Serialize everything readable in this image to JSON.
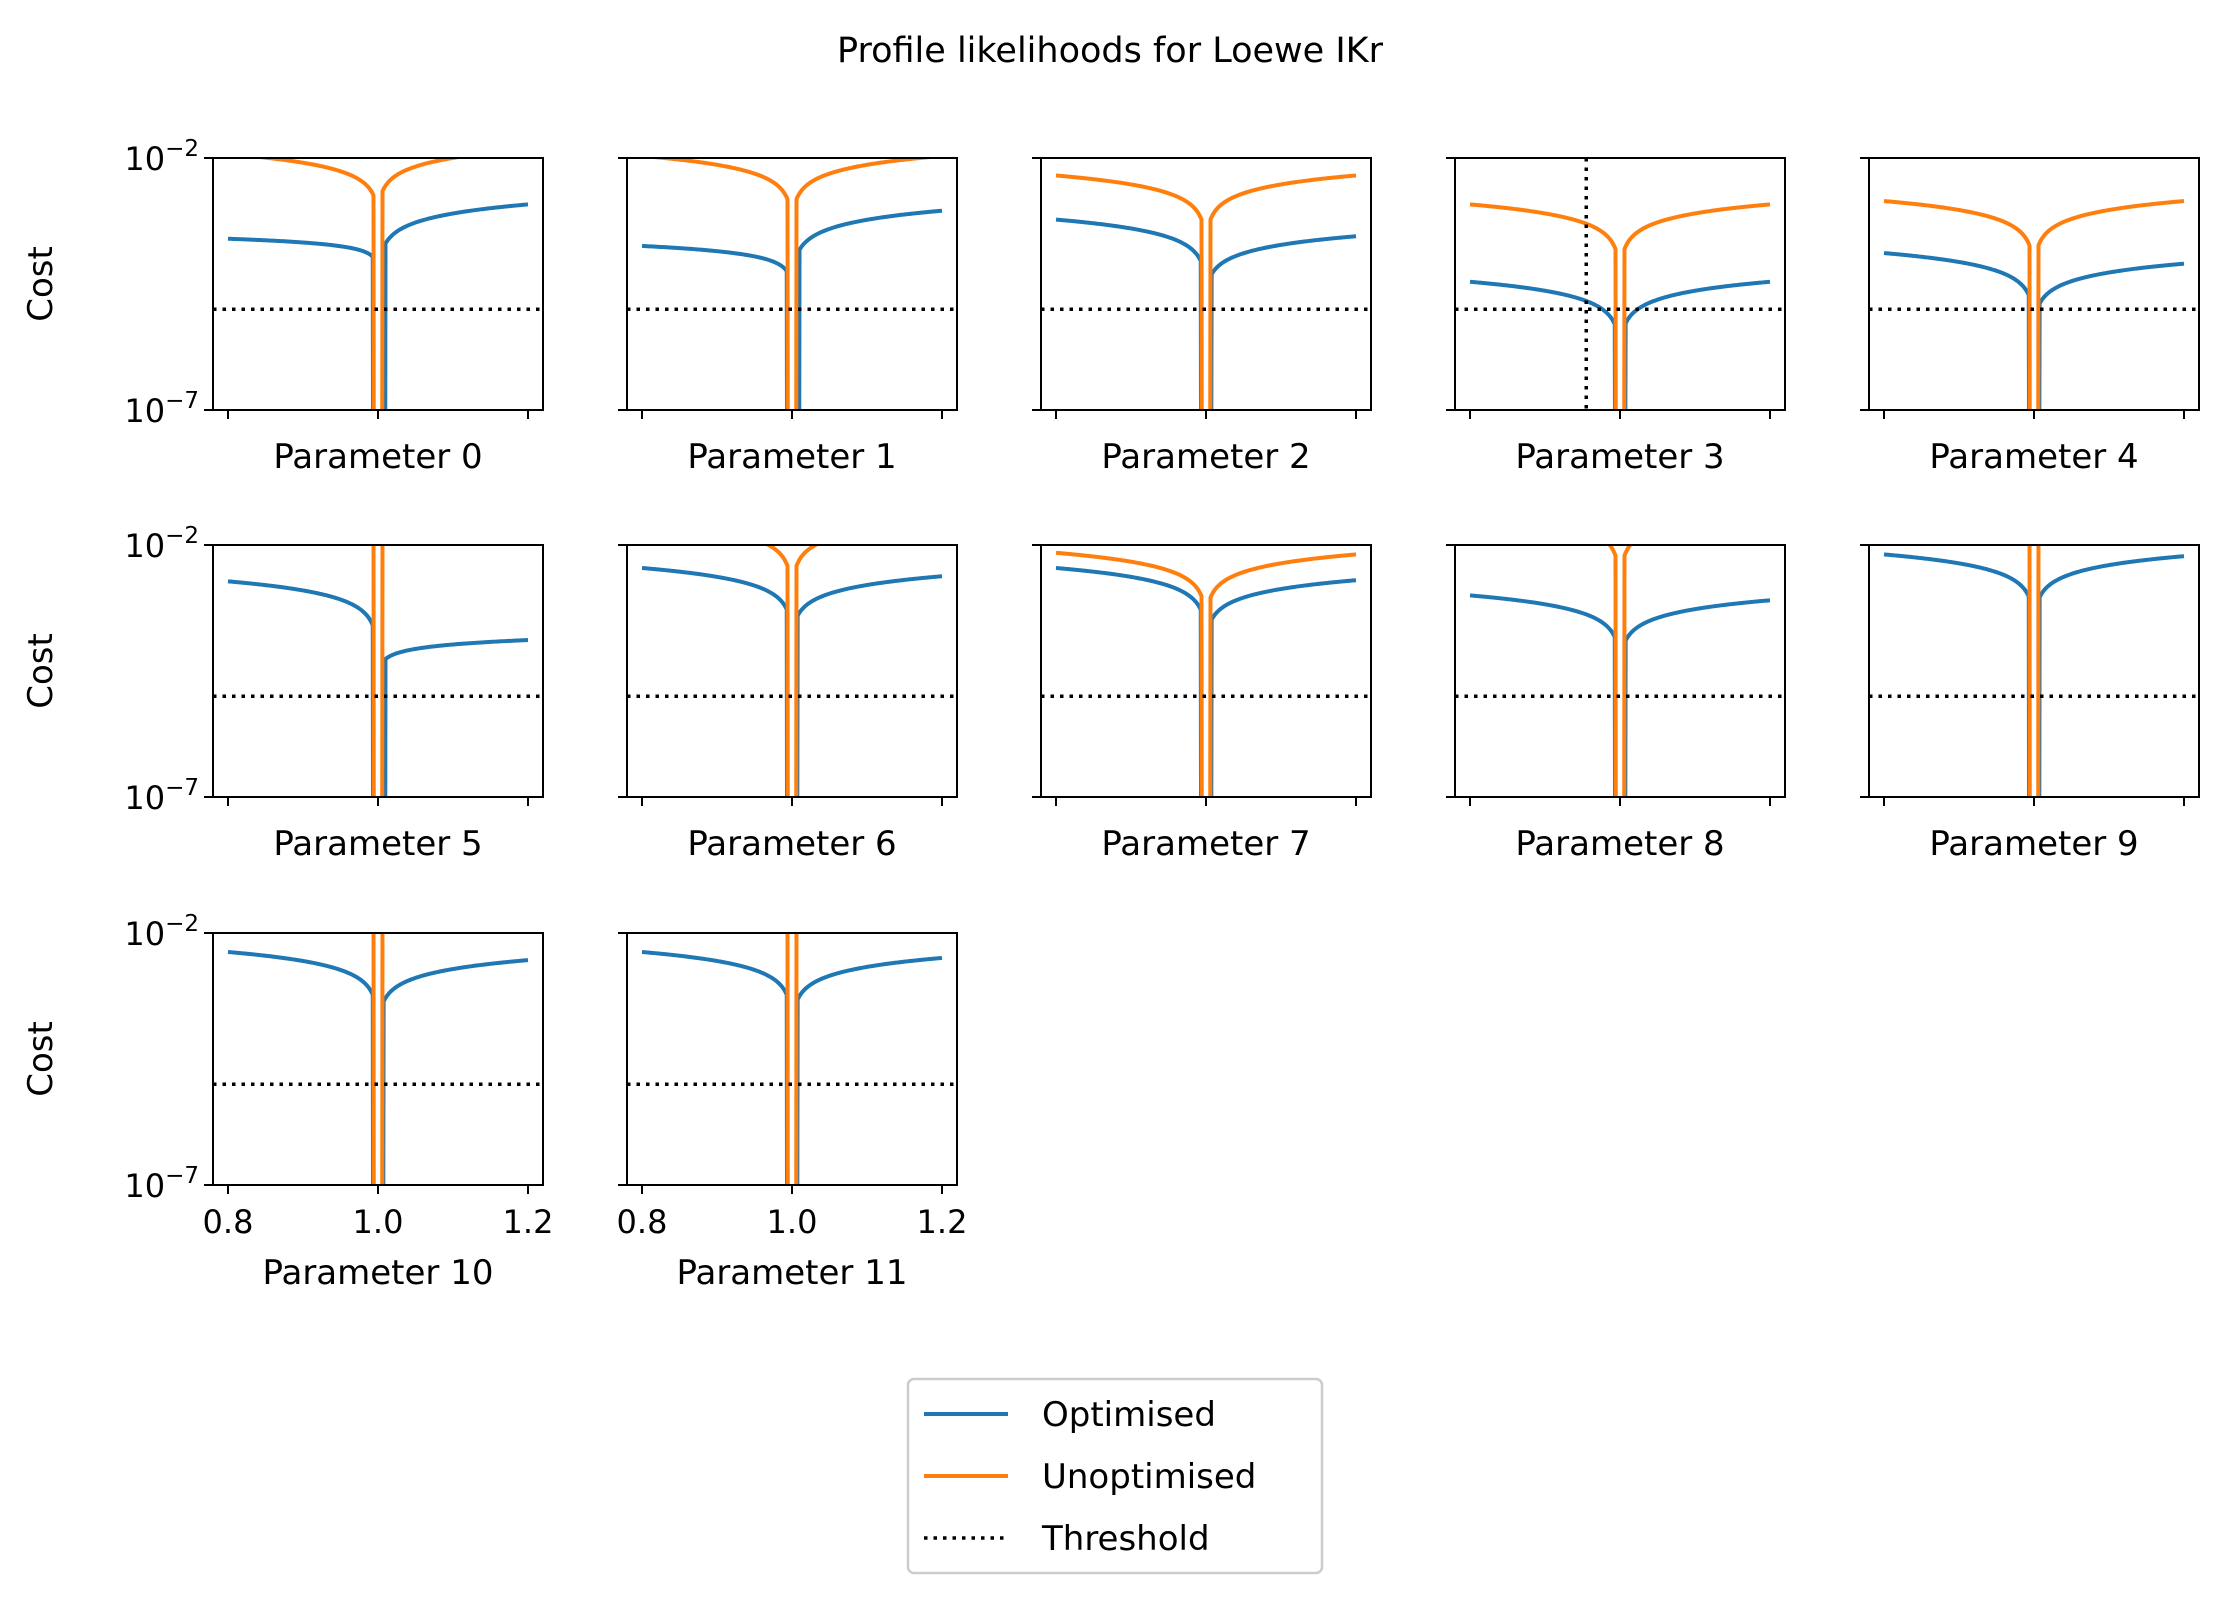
{
  "chart_data": {
    "type": "line",
    "title": "Profile likelihoods for Loewe IKr",
    "ylabel": "Cost",
    "yscale": "log",
    "ylim": [
      1e-07,
      0.01
    ],
    "yticks": [
      {
        "base": "10",
        "exp": "−2"
      },
      {
        "base": "10",
        "exp": "−7"
      }
    ],
    "xlim": [
      0.78,
      1.22
    ],
    "xticks": [
      "0.8",
      "1.0",
      "1.2"
    ],
    "threshold": 1e-05,
    "grid": false,
    "legend_position": "bottom-center",
    "legend": [
      {
        "key": "opt",
        "label": "Optimised",
        "color": "#1f77b4",
        "style": "solid"
      },
      {
        "key": "unopt",
        "label": "Unoptimised",
        "color": "#ff7f0e",
        "style": "solid"
      },
      {
        "key": "thr",
        "label": "Threshold",
        "color": "#000000",
        "style": "dotted"
      }
    ],
    "subplots": [
      {
        "xlabel": "Parameter 0",
        "opt": {
          "left": 0.00025,
          "right": 0.0012,
          "min": 3e-06,
          "kl": 0.25,
          "kr": 0.6,
          "wl": 0.007,
          "wr": 0.01
        },
        "unopt": {
          "left": 0.012,
          "right": 0.015,
          "min": 0.0004,
          "kl": 0.6,
          "kr": 0.6,
          "wl": 0.006,
          "wr": 0.006
        }
      },
      {
        "xlabel": "Parameter 1",
        "opt": {
          "left": 0.00018,
          "right": 0.0009,
          "min": 2e-06,
          "kl": 0.35,
          "kr": 0.6,
          "wl": 0.007,
          "wr": 0.01
        },
        "unopt": {
          "left": 0.011,
          "right": 0.011,
          "min": 0.0002,
          "kl": 0.6,
          "kr": 0.6,
          "wl": 0.006,
          "wr": 0.006
        }
      },
      {
        "xlabel": "Parameter 2",
        "opt": {
          "left": 0.0006,
          "right": 0.00028,
          "min": 1.2e-05,
          "kl": 0.6,
          "kr": 0.6,
          "wl": 0.007,
          "wr": 0.007
        },
        "unopt": {
          "left": 0.0045,
          "right": 0.0045,
          "min": 6e-05,
          "kl": 0.6,
          "kr": 0.6,
          "wl": 0.006,
          "wr": 0.006
        }
      },
      {
        "xlabel": "Parameter 3",
        "opt": {
          "left": 3.5e-05,
          "right": 3.5e-05,
          "min": 4e-07,
          "kl": 0.6,
          "kr": 0.6,
          "wl": 0.007,
          "wr": 0.007
        },
        "unopt": {
          "left": 0.0012,
          "right": 0.0012,
          "min": 1e-05,
          "kl": 0.6,
          "kr": 0.6,
          "wl": 0.006,
          "wr": 0.006
        },
        "vline": 0.955
      },
      {
        "xlabel": "Parameter 4",
        "opt": {
          "left": 0.00013,
          "right": 8e-05,
          "min": 2e-06,
          "kl": 0.6,
          "kr": 0.6,
          "wl": 0.007,
          "wr": 0.007
        },
        "unopt": {
          "left": 0.0014,
          "right": 0.0014,
          "min": 1.5e-05,
          "kl": 0.6,
          "kr": 0.6,
          "wl": 0.006,
          "wr": 0.006
        }
      },
      {
        "xlabel": "Parameter 5",
        "opt": {
          "left": 0.0019,
          "right": 0.00013,
          "min": 3e-06,
          "kl": 0.6,
          "kr": 0.3,
          "wl": 0.007,
          "wr": 0.01
        },
        "unopt": {
          "left": 0.25,
          "right": 0.25,
          "min": 0.0004,
          "kl": 0.6,
          "kr": 0.6,
          "wl": 0.006,
          "wr": 0.006
        }
      },
      {
        "xlabel": "Parameter 6",
        "opt": {
          "left": 0.0035,
          "right": 0.0024,
          "min": 7e-05,
          "kl": 0.6,
          "kr": 0.6,
          "wl": 0.007,
          "wr": 0.007
        },
        "unopt": {
          "left": 0.03,
          "right": 0.03,
          "min": 0.0002,
          "kl": 0.6,
          "kr": 0.6,
          "wl": 0.006,
          "wr": 0.006
        }
      },
      {
        "xlabel": "Parameter 7",
        "opt": {
          "left": 0.0035,
          "right": 0.002,
          "min": 6e-05,
          "kl": 0.6,
          "kr": 0.6,
          "wl": 0.007,
          "wr": 0.007
        },
        "unopt": {
          "left": 0.007,
          "right": 0.0065,
          "min": 0.00013,
          "kl": 0.6,
          "kr": 0.6,
          "wl": 0.006,
          "wr": 0.006
        }
      },
      {
        "xlabel": "Parameter 8",
        "opt": {
          "left": 0.001,
          "right": 0.0008,
          "min": 1.8e-05,
          "kl": 0.6,
          "kr": 0.6,
          "wl": 0.007,
          "wr": 0.007
        },
        "unopt": {
          "left": 0.05,
          "right": 0.05,
          "min": 4e-05,
          "kl": 0.6,
          "kr": 0.6,
          "wl": 0.006,
          "wr": 0.006
        }
      },
      {
        "xlabel": "Parameter 9",
        "opt": {
          "left": 0.0065,
          "right": 0.006,
          "min": 0.0001,
          "kl": 0.6,
          "kr": 0.6,
          "wl": 0.007,
          "wr": 0.007
        },
        "unopt": {
          "left": 0.35,
          "right": 0.35,
          "min": 0.00025,
          "kl": 0.6,
          "kr": 0.6,
          "wl": 0.006,
          "wr": 0.006
        }
      },
      {
        "xlabel": "Parameter 10",
        "opt": {
          "left": 0.0042,
          "right": 0.0029,
          "min": 4e-05,
          "kl": 0.6,
          "kr": 0.6,
          "wl": 0.007,
          "wr": 0.007
        },
        "unopt": {
          "left": 0.25,
          "right": 0.25,
          "min": 0.00045,
          "kl": 0.6,
          "kr": 0.6,
          "wl": 0.006,
          "wr": 0.006
        }
      },
      {
        "xlabel": "Parameter 11",
        "opt": {
          "left": 0.0042,
          "right": 0.0032,
          "min": 4e-05,
          "kl": 0.6,
          "kr": 0.6,
          "wl": 0.007,
          "wr": 0.007
        },
        "unopt": {
          "left": 0.12,
          "right": 0.12,
          "min": 0.00045,
          "kl": 0.6,
          "kr": 0.6,
          "wl": 0.006,
          "wr": 0.006
        }
      }
    ]
  }
}
